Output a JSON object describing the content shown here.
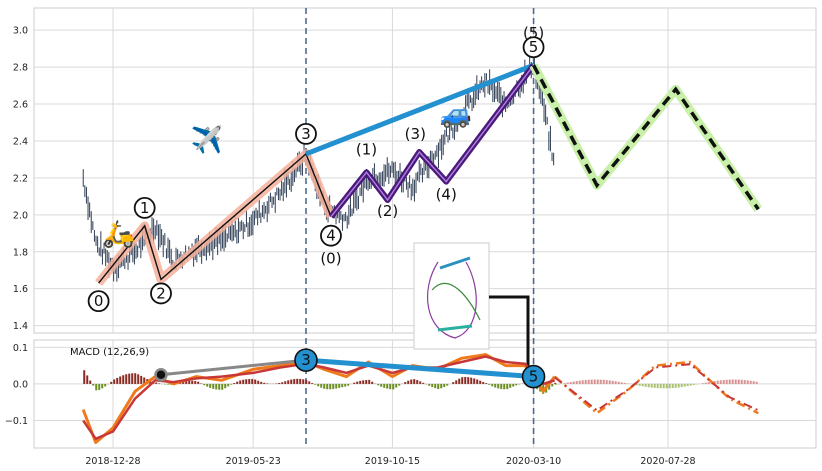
{
  "chart_data": [
    {
      "type": "line",
      "panel": "price",
      "ylim": [
        1.36,
        3.12
      ],
      "yticks": [
        "1.4",
        "1.6",
        "1.8",
        "2.0",
        "2.2",
        "2.4",
        "2.6",
        "2.8",
        "3.0"
      ],
      "grid": true,
      "price_series": {
        "x": [
          "2018-11-27",
          "2018-12-10",
          "2018-12-28",
          "2019-01-20",
          "2019-02-10",
          "2019-03-01",
          "2019-03-25",
          "2019-04-20",
          "2019-05-23",
          "2019-06-20",
          "2019-07-17",
          "2019-08-05",
          "2019-08-28",
          "2019-09-20",
          "2019-10-15",
          "2019-11-05",
          "2019-12-01",
          "2019-12-26",
          "2020-01-20",
          "2020-02-10",
          "2020-03-01",
          "2020-03-10",
          "2020-03-20",
          "2020-04-01"
        ],
        "y": [
          2.2,
          1.85,
          1.72,
          1.8,
          1.94,
          1.75,
          1.82,
          1.86,
          1.97,
          2.12,
          2.32,
          2.05,
          1.98,
          2.2,
          2.24,
          2.15,
          2.35,
          2.55,
          2.72,
          2.6,
          2.75,
          2.82,
          2.6,
          2.25
        ]
      },
      "elliott_waves": {
        "primary": {
          "labels": [
            "0",
            "1",
            "2",
            "3",
            "4",
            "5"
          ],
          "x": [
            "2018-12-13",
            "2019-01-30",
            "2019-02-16",
            "2019-07-17",
            "2019-08-12",
            "2020-03-10"
          ],
          "y": [
            1.63,
            1.94,
            1.65,
            2.33,
            1.99,
            2.81
          ]
        },
        "sub": {
          "labels": [
            "(0)",
            "(1)",
            "(2)",
            "(3)",
            "(4)",
            "(5)"
          ],
          "x": [
            "2019-08-12",
            "2019-09-18",
            "2019-10-10",
            "2019-11-12",
            "2019-12-10",
            "2020-03-10"
          ],
          "y": [
            1.99,
            2.23,
            2.08,
            2.34,
            2.18,
            2.81
          ]
        },
        "projection": {
          "x": [
            "2020-03-10",
            "2020-05-15",
            "2020-08-05",
            "2020-10-30"
          ],
          "y": [
            2.81,
            2.16,
            2.68,
            2.03
          ]
        },
        "trendline_3_5": {
          "x": [
            "2019-07-17",
            "2020-03-10"
          ],
          "y": [
            2.33,
            2.81
          ]
        }
      },
      "vlines": [
        "2019-07-17",
        "2020-03-10"
      ],
      "icons": [
        "scooter-icon",
        "airplane-icon",
        "car-icon"
      ]
    },
    {
      "type": "line",
      "panel": "macd",
      "label": "MACD (12,26,9)",
      "ylim": [
        -0.175,
        0.12
      ],
      "yticks": [
        "0.1",
        "0.0",
        "−0.1"
      ],
      "xticks": [
        "2018-12-28",
        "2019-05-23",
        "2019-10-15",
        "2020-03-10",
        "2020-07-28"
      ],
      "macd_line": {
        "x": [
          "2018-11-27",
          "2018-12-10",
          "2018-12-28",
          "2019-01-20",
          "2019-02-10",
          "2019-03-01",
          "2019-03-25",
          "2019-04-20",
          "2019-05-23",
          "2019-06-20",
          "2019-07-17",
          "2019-08-05",
          "2019-08-28",
          "2019-09-20",
          "2019-10-15",
          "2019-11-05",
          "2019-12-01",
          "2019-12-26",
          "2020-01-20",
          "2020-02-10",
          "2020-03-01",
          "2020-03-10",
          "2020-03-20",
          "2020-04-01"
        ],
        "y": [
          -0.07,
          -0.16,
          -0.12,
          -0.02,
          0.02,
          0.0,
          0.02,
          0.01,
          0.04,
          0.05,
          0.06,
          0.04,
          0.02,
          0.06,
          0.02,
          0.05,
          0.04,
          0.07,
          0.08,
          0.05,
          0.05,
          0.02,
          -0.02,
          0.02
        ]
      },
      "signal_line": {
        "x": [
          "2018-11-27",
          "2018-12-10",
          "2018-12-28",
          "2019-01-20",
          "2019-02-10",
          "2019-03-01",
          "2019-03-25",
          "2019-04-20",
          "2019-05-23",
          "2019-06-20",
          "2019-07-17",
          "2019-08-05",
          "2019-08-28",
          "2019-09-20",
          "2019-10-15",
          "2019-11-05",
          "2019-12-01",
          "2019-12-26",
          "2020-01-20",
          "2020-02-10",
          "2020-03-01",
          "2020-03-10",
          "2020-03-20",
          "2020-04-01"
        ],
        "y": [
          -0.1,
          -0.15,
          -0.13,
          -0.04,
          0.01,
          0.005,
          0.015,
          0.02,
          0.03,
          0.045,
          0.055,
          0.045,
          0.03,
          0.05,
          0.03,
          0.045,
          0.045,
          0.06,
          0.075,
          0.06,
          0.055,
          0.03,
          0.0,
          0.01
        ]
      },
      "projected_macd": {
        "x": [
          "2020-04-01",
          "2020-05-15",
          "2020-06-15",
          "2020-07-15",
          "2020-08-20",
          "2020-09-30",
          "2020-10-30"
        ],
        "y": [
          0.02,
          -0.08,
          -0.02,
          0.05,
          0.06,
          -0.04,
          -0.08
        ]
      },
      "markers": {
        "wave3": {
          "label": "3",
          "x": "2019-07-17",
          "y": 0.065
        },
        "wave5": {
          "label": "5",
          "x": "2020-03-10",
          "y": 0.02
        },
        "start_dot": {
          "x": "2019-02-16",
          "y": 0.025
        }
      },
      "trendline_3_5": {
        "x": [
          "2019-07-17",
          "2020-03-10"
        ],
        "y": [
          0.065,
          0.02
        ]
      }
    }
  ]
}
